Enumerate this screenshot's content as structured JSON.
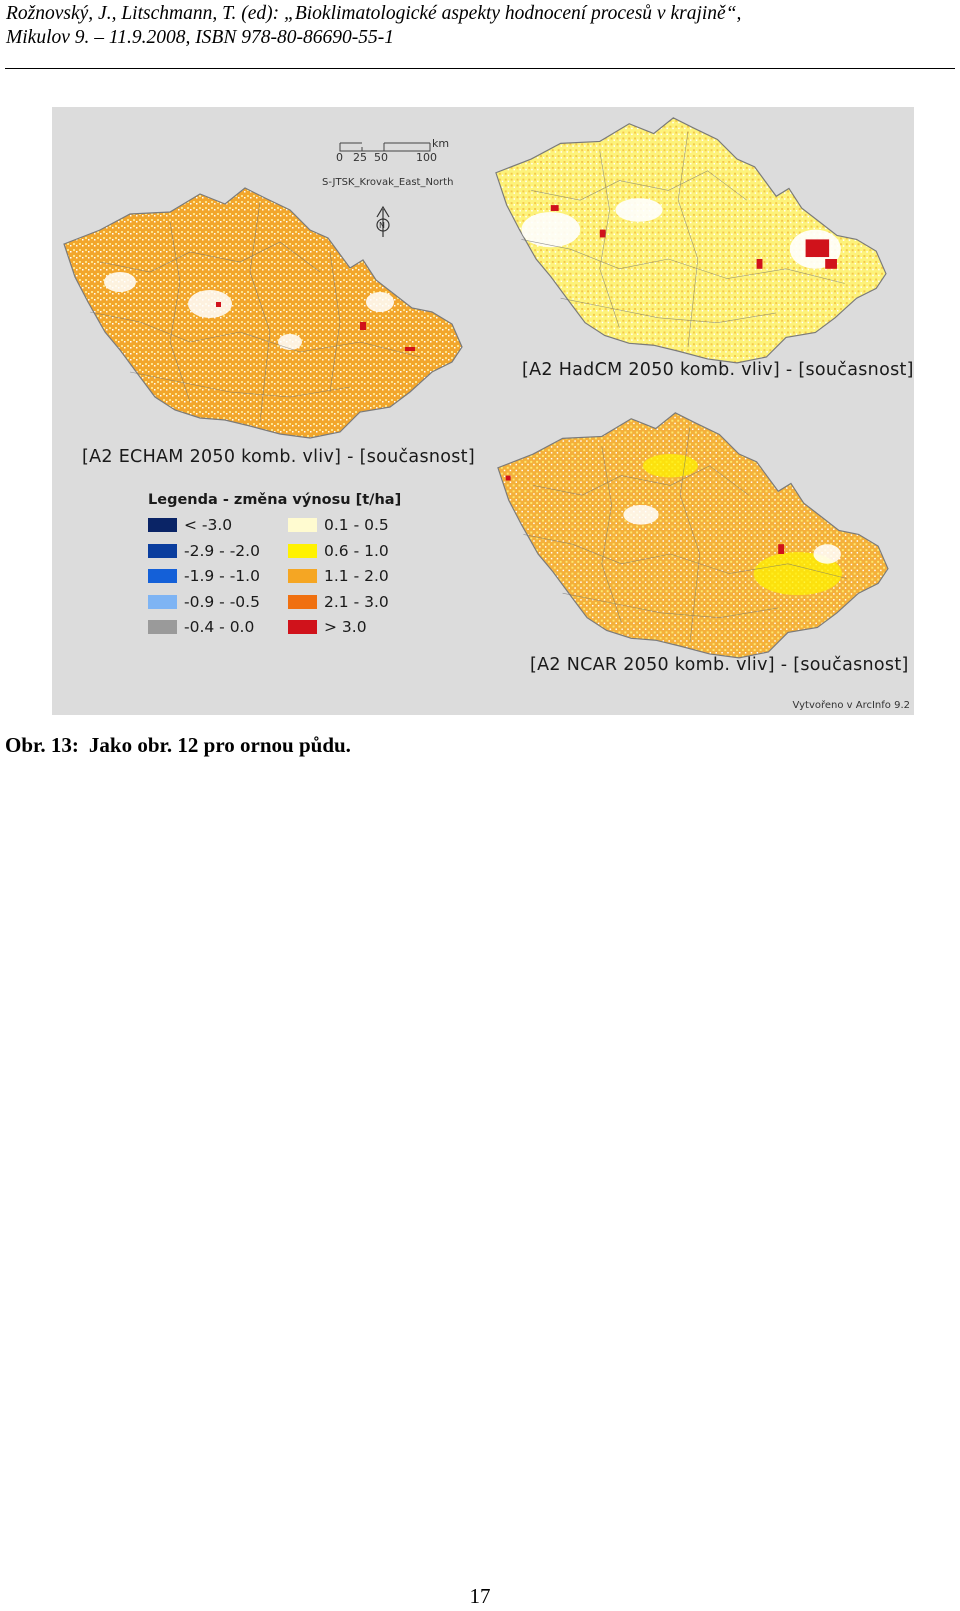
{
  "header": {
    "line1": "Rožnovský, J., Litschmann, T. (ed): „Bioklimatologické aspekty hodnocení procesů v krajině“,",
    "line2": "Mikulov 9. – 11.9.2008, ISBN 978-80-86690-55-1"
  },
  "figure": {
    "scalebar": {
      "ticks": [
        "0",
        "25",
        "50",
        "100"
      ],
      "unit": "km",
      "projection": "S-JTSK_Krovak_East_North"
    },
    "north_arrow": "N",
    "maps": [
      {
        "id": "echam",
        "label": "[A2 ECHAM 2050 komb. vliv] - [současnost]",
        "dominant_color": "#f5a623"
      },
      {
        "id": "hadcm",
        "label": "[A2 HadCM 2050 komb. vliv] - [současnost]",
        "dominant_color": "#fff46a"
      },
      {
        "id": "ncar",
        "label": "[A2 NCAR 2050 komb. vliv] - [současnost]",
        "dominant_color": "#f5b43a"
      }
    ],
    "legend": {
      "title": "Legenda - změna výnosu [t/ha]",
      "left": [
        {
          "label": "< -3.0",
          "color": "#0a2466"
        },
        {
          "label": "-2.9 - -2.0",
          "color": "#0a3d9e"
        },
        {
          "label": "-1.9 - -1.0",
          "color": "#1460d8"
        },
        {
          "label": "-0.9 - -0.5",
          "color": "#7eb4f4"
        },
        {
          "label": "-0.4 - 0.0",
          "color": "#9a9a9a"
        }
      ],
      "right": [
        {
          "label": "0.1 - 0.5",
          "color": "#fffbd0"
        },
        {
          "label": "0.6 - 1.0",
          "color": "#fff200"
        },
        {
          "label": "1.1 - 2.0",
          "color": "#f5a623"
        },
        {
          "label": "2.1 - 3.0",
          "color": "#f07010"
        },
        {
          "label": "> 3.0",
          "color": "#d0121b"
        }
      ]
    },
    "credit": "Vytvořeno v  ArcInfo 9.2"
  },
  "caption": {
    "label": "Obr. 13:",
    "text": "Jako obr. 12 pro ornou půdu."
  },
  "page_number": "17"
}
